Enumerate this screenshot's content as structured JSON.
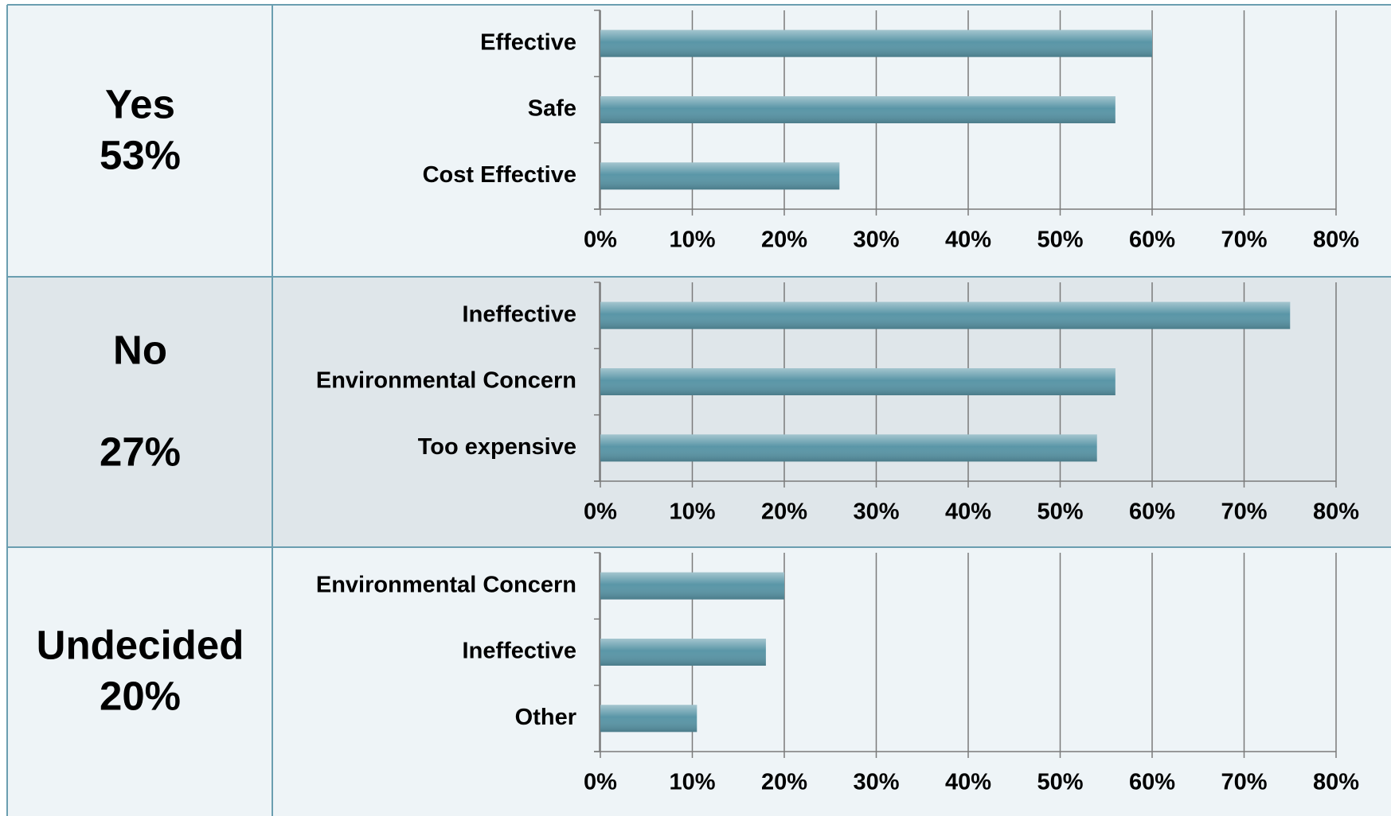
{
  "chart_data": [
    {
      "type": "bar",
      "orientation": "horizontal",
      "title": "Yes",
      "subtitle": "53%",
      "categories": [
        "Effective",
        "Safe",
        "Cost Effective"
      ],
      "values": [
        60,
        56,
        26
      ],
      "color": "#5a96a7",
      "xlim": [
        0,
        80
      ],
      "xticks": [
        {
          "value": 0,
          "label": "0%"
        },
        {
          "value": 10,
          "label": "10%"
        },
        {
          "value": 20,
          "label": "20%"
        },
        {
          "value": 30,
          "label": "30%"
        },
        {
          "value": 40,
          "label": "40%"
        },
        {
          "value": 50,
          "label": "50%"
        },
        {
          "value": 60,
          "label": "60%"
        },
        {
          "value": 70,
          "label": "70%"
        },
        {
          "value": 80,
          "label": "80%"
        }
      ],
      "grid": true
    },
    {
      "type": "bar",
      "orientation": "horizontal",
      "title": "No",
      "subtitle": "27%",
      "categories": [
        "Ineffective",
        "Environmental Concern",
        "Too expensive"
      ],
      "values": [
        75,
        56,
        54
      ],
      "color": "#5a96a7",
      "xlim": [
        0,
        80
      ],
      "xticks": [
        {
          "value": 0,
          "label": "0%"
        },
        {
          "value": 10,
          "label": "10%"
        },
        {
          "value": 20,
          "label": "20%"
        },
        {
          "value": 30,
          "label": "30%"
        },
        {
          "value": 40,
          "label": "40%"
        },
        {
          "value": 50,
          "label": "50%"
        },
        {
          "value": 60,
          "label": "60%"
        },
        {
          "value": 70,
          "label": "70%"
        },
        {
          "value": 80,
          "label": "80%"
        }
      ],
      "grid": true
    },
    {
      "type": "bar",
      "orientation": "horizontal",
      "title": "Undecided",
      "subtitle": "20%",
      "categories": [
        "Environmental Concern",
        "Ineffective",
        "Other"
      ],
      "values": [
        20,
        18,
        10.5
      ],
      "color": "#5a96a7",
      "xlim": [
        0,
        80
      ],
      "xticks": [
        {
          "value": 0,
          "label": "0%"
        },
        {
          "value": 10,
          "label": "10%"
        },
        {
          "value": 20,
          "label": "20%"
        },
        {
          "value": 30,
          "label": "30%"
        },
        {
          "value": 40,
          "label": "40%"
        },
        {
          "value": 50,
          "label": "50%"
        },
        {
          "value": 60,
          "label": "60%"
        },
        {
          "value": 70,
          "label": "70%"
        },
        {
          "value": 80,
          "label": "80%"
        }
      ],
      "grid": true
    }
  ]
}
